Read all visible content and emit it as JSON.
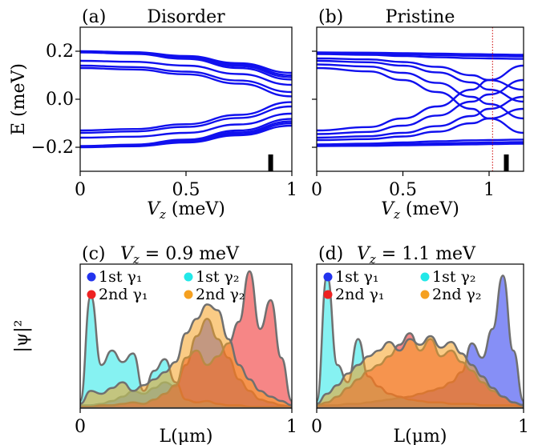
{
  "figure": {
    "ylabel_top": "E (meV)",
    "ylabel_bottom": "|ψ|²"
  },
  "chart_data": [
    {
      "id": "a",
      "type": "line",
      "panel_label": "(a)",
      "title": "Disorder",
      "xlabel": "V_z (meV)",
      "ylabel": "E (meV)",
      "xlim": [
        0,
        1
      ],
      "ylim": [
        -0.3,
        0.3
      ],
      "x_ticks": [
        "0",
        "0.5",
        "1"
      ],
      "y_ticks": [
        "0.2",
        "0.0",
        "−0.2"
      ],
      "x": [
        0,
        0.25,
        0.5,
        0.75,
        1.0
      ],
      "series": [
        {
          "values": [
            0.2,
            0.196,
            0.18,
            0.15,
            0.11
          ]
        },
        {
          "values": [
            0.198,
            0.194,
            0.176,
            0.145,
            0.1
          ]
        },
        {
          "values": [
            0.196,
            0.191,
            0.172,
            0.138,
            0.092
          ]
        },
        {
          "values": [
            0.195,
            0.189,
            0.168,
            0.13,
            0.082
          ]
        },
        {
          "values": [
            0.16,
            0.156,
            0.14,
            0.105,
            0.06
          ]
        },
        {
          "values": [
            0.14,
            0.134,
            0.115,
            0.078,
            0.03
          ]
        },
        {
          "values": [
            0.13,
            0.124,
            0.104,
            0.065,
            0.012
          ]
        },
        {
          "values": [
            -0.13,
            -0.124,
            -0.104,
            -0.065,
            -0.012
          ]
        },
        {
          "values": [
            -0.14,
            -0.134,
            -0.115,
            -0.078,
            -0.03
          ]
        },
        {
          "values": [
            -0.16,
            -0.156,
            -0.14,
            -0.105,
            -0.06
          ]
        },
        {
          "values": [
            -0.195,
            -0.189,
            -0.168,
            -0.13,
            -0.082
          ]
        },
        {
          "values": [
            -0.196,
            -0.191,
            -0.172,
            -0.138,
            -0.092
          ]
        },
        {
          "values": [
            -0.198,
            -0.194,
            -0.176,
            -0.145,
            -0.1
          ]
        },
        {
          "values": [
            -0.2,
            -0.196,
            -0.18,
            -0.15,
            -0.11
          ]
        }
      ],
      "marker": {
        "x": 0.9,
        "y_range": [
          -0.3,
          -0.23
        ]
      },
      "line_color": "#1010ee"
    },
    {
      "id": "b",
      "type": "line",
      "panel_label": "(b)",
      "title": "Pristine",
      "xlabel": "V_z (meV)",
      "xlim": [
        0,
        1.2
      ],
      "ylim": [
        -0.3,
        0.3
      ],
      "x_ticks": [
        "0",
        "0.5",
        "1"
      ],
      "x": [
        0,
        0.3,
        0.5,
        0.7,
        0.9,
        1.0,
        1.2
      ],
      "series": [
        {
          "values": [
            0.195,
            0.194,
            0.192,
            0.19,
            0.188,
            0.187,
            0.185
          ]
        },
        {
          "values": [
            0.192,
            0.19,
            0.187,
            0.184,
            0.181,
            0.18,
            0.178
          ]
        },
        {
          "values": [
            0.188,
            0.185,
            0.18,
            0.175,
            0.171,
            0.17,
            0.168
          ]
        },
        {
          "values": [
            0.17,
            0.166,
            0.155,
            0.135,
            0.1,
            0.08,
            0.04
          ]
        },
        {
          "values": [
            0.16,
            0.154,
            0.14,
            0.112,
            0.07,
            0.04,
            -0.01
          ]
        },
        {
          "values": [
            0.145,
            0.136,
            0.11,
            0.068,
            0.01,
            -0.02,
            -0.08
          ]
        },
        {
          "values": [
            0.13,
            0.116,
            0.08,
            0.03,
            -0.04,
            -0.08,
            -0.14
          ]
        },
        {
          "values": [
            -0.13,
            -0.116,
            -0.08,
            -0.03,
            0.04,
            0.08,
            0.14
          ]
        },
        {
          "values": [
            -0.145,
            -0.136,
            -0.11,
            -0.068,
            -0.01,
            0.02,
            0.08
          ]
        },
        {
          "values": [
            -0.16,
            -0.154,
            -0.14,
            -0.112,
            -0.07,
            -0.04,
            0.01
          ]
        },
        {
          "values": [
            -0.17,
            -0.166,
            -0.155,
            -0.135,
            -0.1,
            -0.08,
            -0.04
          ]
        },
        {
          "values": [
            -0.188,
            -0.185,
            -0.18,
            -0.175,
            -0.171,
            -0.17,
            -0.168
          ]
        },
        {
          "values": [
            -0.192,
            -0.19,
            -0.187,
            -0.184,
            -0.181,
            -0.18,
            -0.178
          ]
        },
        {
          "values": [
            -0.195,
            -0.194,
            -0.192,
            -0.19,
            -0.188,
            -0.187,
            -0.185
          ]
        }
      ],
      "vline": {
        "x": 1.02,
        "color": "#cc0000",
        "style": "dotted"
      },
      "marker": {
        "x": 1.1,
        "y_range": [
          -0.3,
          -0.23
        ]
      },
      "line_color": "#1010ee"
    },
    {
      "id": "c",
      "type": "area",
      "panel_label": "(c)",
      "title": "V_z = 0.9 meV",
      "xlabel": "L(μm)",
      "ylabel": "|ψ|²",
      "xlim": [
        0,
        1
      ],
      "ylim": [
        0,
        1
      ],
      "x_ticks": [
        "0",
        "1"
      ],
      "x": [
        0,
        0.05,
        0.1,
        0.15,
        0.2,
        0.25,
        0.3,
        0.35,
        0.4,
        0.45,
        0.5,
        0.55,
        0.6,
        0.65,
        0.7,
        0.75,
        0.8,
        0.85,
        0.9,
        0.95,
        1.0
      ],
      "series": [
        {
          "name": "1st γ₁",
          "color": "#2233ee",
          "values": [
            0.02,
            0.02,
            0.03,
            0.05,
            0.08,
            0.12,
            0.1,
            0.14,
            0.18,
            0.15,
            0.3,
            0.5,
            0.62,
            0.48,
            0.35,
            0.2,
            0.12,
            0.06,
            0.04,
            0.02,
            0.01
          ]
        },
        {
          "name": "1st γ₂",
          "color": "#22e8e8",
          "values": [
            0.05,
            0.78,
            0.3,
            0.4,
            0.32,
            0.38,
            0.12,
            0.26,
            0.34,
            0.18,
            0.06,
            0.04,
            0.05,
            0.03,
            0.02,
            0.02,
            0.01,
            0.01,
            0.01,
            0.01,
            0.01
          ]
        },
        {
          "name": "2nd γ₁",
          "color": "#ee2222",
          "values": [
            0.01,
            0.01,
            0.02,
            0.02,
            0.03,
            0.04,
            0.03,
            0.06,
            0.1,
            0.16,
            0.35,
            0.4,
            0.3,
            0.36,
            0.45,
            0.6,
            0.95,
            0.55,
            0.75,
            0.35,
            0.05
          ]
        },
        {
          "name": "2nd γ₂",
          "color": "#f5a020",
          "values": [
            0.03,
            0.12,
            0.1,
            0.14,
            0.18,
            0.12,
            0.16,
            0.2,
            0.25,
            0.32,
            0.52,
            0.62,
            0.72,
            0.68,
            0.48,
            0.3,
            0.2,
            0.12,
            0.08,
            0.05,
            0.02
          ]
        }
      ]
    },
    {
      "id": "d",
      "type": "area",
      "panel_label": "(d)",
      "title": "V_z = 1.1 meV",
      "xlabel": "L(μm)",
      "xlim": [
        0,
        1
      ],
      "ylim": [
        0,
        1
      ],
      "x_ticks": [
        "0",
        "1"
      ],
      "x": [
        0,
        0.05,
        0.1,
        0.15,
        0.2,
        0.25,
        0.3,
        0.35,
        0.4,
        0.45,
        0.5,
        0.55,
        0.6,
        0.65,
        0.7,
        0.75,
        0.8,
        0.85,
        0.9,
        0.95,
        1.0
      ],
      "series": [
        {
          "name": "1st γ₁",
          "color": "#2233ee",
          "values": [
            0.02,
            0.02,
            0.02,
            0.03,
            0.03,
            0.04,
            0.05,
            0.06,
            0.07,
            0.08,
            0.1,
            0.12,
            0.14,
            0.18,
            0.25,
            0.45,
            0.35,
            0.55,
            0.92,
            0.4,
            0.05
          ]
        },
        {
          "name": "1st γ₂",
          "color": "#22e8e8",
          "values": [
            0.05,
            0.92,
            0.3,
            0.18,
            0.48,
            0.22,
            0.15,
            0.1,
            0.08,
            0.06,
            0.05,
            0.04,
            0.04,
            0.03,
            0.03,
            0.03,
            0.02,
            0.02,
            0.02,
            0.02,
            0.01
          ]
        },
        {
          "name": "2nd γ₁",
          "color": "#ee2222",
          "values": [
            0.02,
            0.04,
            0.08,
            0.14,
            0.2,
            0.26,
            0.3,
            0.36,
            0.44,
            0.52,
            0.4,
            0.48,
            0.36,
            0.4,
            0.32,
            0.26,
            0.18,
            0.12,
            0.08,
            0.04,
            0.02
          ]
        },
        {
          "name": "2nd γ₂",
          "color": "#f5a020",
          "values": [
            0.03,
            0.1,
            0.16,
            0.24,
            0.3,
            0.36,
            0.4,
            0.46,
            0.4,
            0.48,
            0.44,
            0.5,
            0.42,
            0.46,
            0.38,
            0.3,
            0.22,
            0.14,
            0.08,
            0.04,
            0.02
          ]
        }
      ]
    }
  ]
}
